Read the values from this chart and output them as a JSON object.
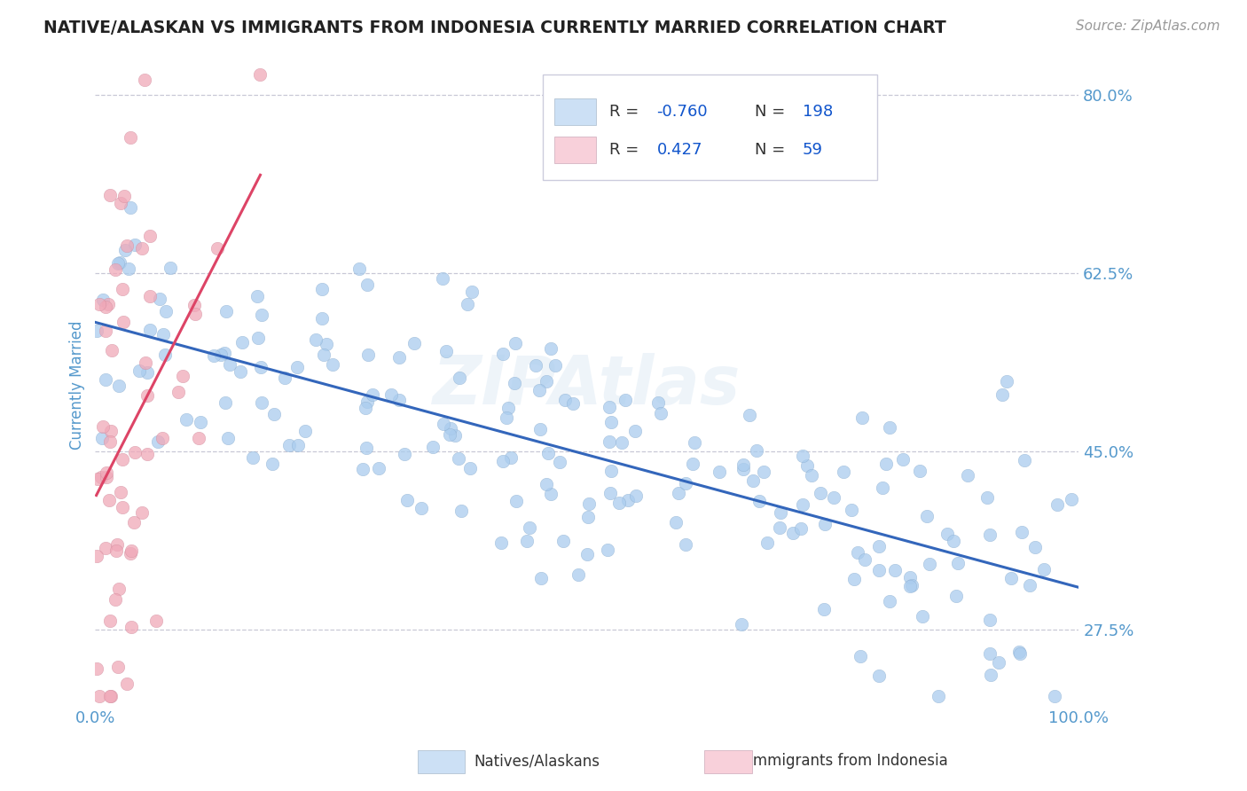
{
  "title": "NATIVE/ALASKAN VS IMMIGRANTS FROM INDONESIA CURRENTLY MARRIED CORRELATION CHART",
  "source_text": "Source: ZipAtlas.com",
  "ylabel": "Currently Married",
  "xlim": [
    0.0,
    100.0
  ],
  "ylim": [
    20.0,
    83.0
  ],
  "yticks": [
    27.5,
    45.0,
    62.5,
    80.0
  ],
  "blue_R": -0.76,
  "blue_N": 198,
  "pink_R": 0.427,
  "pink_N": 59,
  "blue_dot_color": "#aaccee",
  "pink_dot_color": "#f0a8b8",
  "blue_line_color": "#3366bb",
  "pink_line_color": "#dd4466",
  "legend_box_blue": "#cce0f5",
  "legend_box_pink": "#f8d0da",
  "tick_color": "#5599cc",
  "watermark": "ZIPAtlas",
  "background_color": "#ffffff",
  "grid_color": "#bbbbcc"
}
